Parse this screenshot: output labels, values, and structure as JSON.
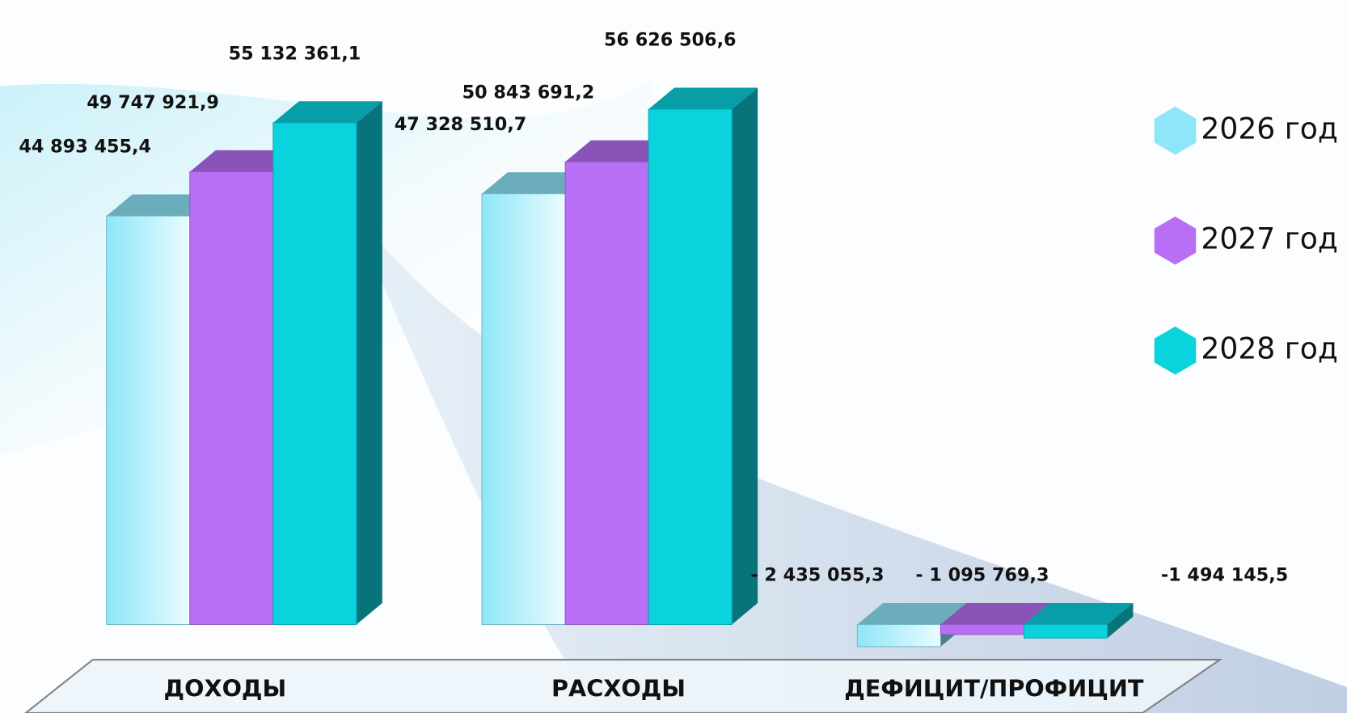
{
  "chart_data": {
    "type": "bar3d",
    "categories": [
      "ДОХОДЫ",
      "РАСХОДЫ",
      "ДЕФИЦИТ/ПРОФИЦИТ"
    ],
    "series": [
      {
        "name": "2026 год",
        "color": "#8ee6f8",
        "values": [
          44893455.4,
          47328510.7,
          -2435055.3
        ],
        "value_labels": [
          "44 893 455,4",
          "47 328 510,7",
          "- 2 435 055,3"
        ]
      },
      {
        "name": "2027 год",
        "color": "#b86ef5",
        "values": [
          49747921.9,
          50843691.2,
          -1095769.3
        ],
        "value_labels": [
          "49 747 921,9",
          "50 843 691,2",
          "- 1 095 769,3"
        ]
      },
      {
        "name": "2028 год",
        "color": "#0bd3de",
        "values": [
          55132361.1,
          56626506.6,
          -1494145.5
        ],
        "value_labels": [
          "55 132 361,1",
          "56 626 506,6",
          "-1 494 145,5"
        ]
      }
    ],
    "legend": "right"
  }
}
